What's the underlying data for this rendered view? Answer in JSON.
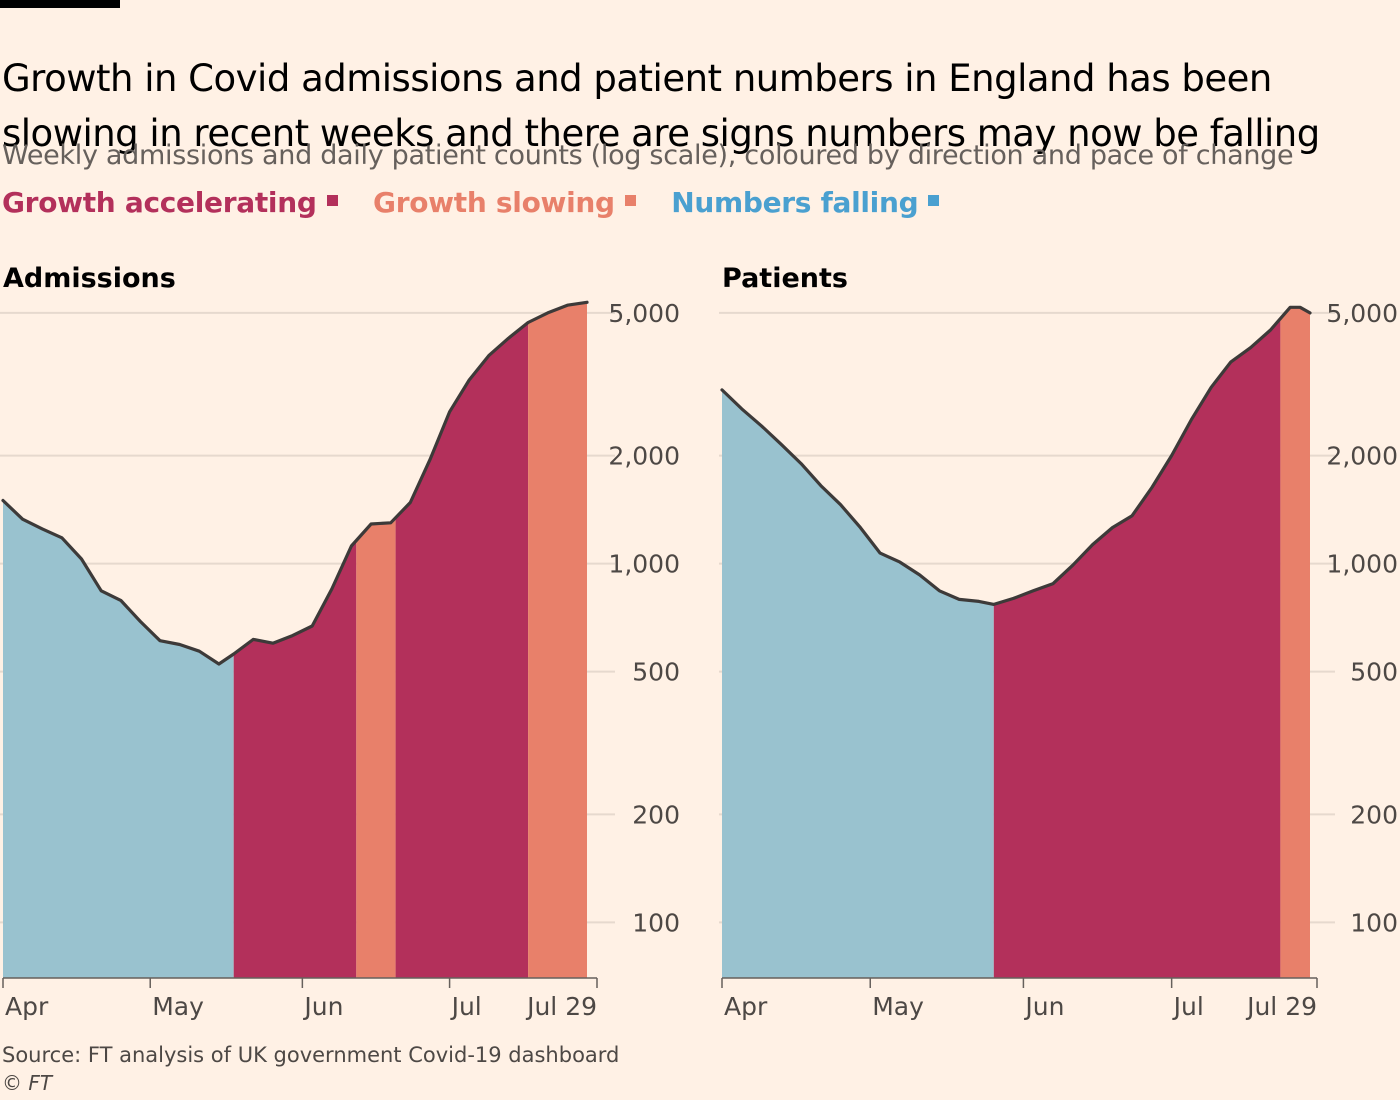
{
  "title": "Growth in Covid admissions and patient numbers in England has been slowing in recent weeks and there are signs numbers may now be falling",
  "subtitle": "Weekly admissions and daily patient counts (log scale), coloured by direction and pace of change",
  "legend": [
    {
      "label": "Growth accelerating",
      "color": "#b3305b"
    },
    {
      "label": "Growth slowing",
      "color": "#e8806a"
    },
    {
      "label": "Numbers falling",
      "color": "#4aa0d0"
    }
  ],
  "colors": {
    "falling": "#99c2cf",
    "accelerating": "#b3305b",
    "slowing": "#e8806a",
    "line": "#3d3a39",
    "grid": "#e6d9ce"
  },
  "source": "Source: FT analysis of UK government Covid-19 dashboard",
  "copyright": "© FT",
  "chart_data": [
    {
      "type": "area",
      "title": "Admissions",
      "scale": "log",
      "ylim": [
        70,
        5500
      ],
      "yticks": [
        100,
        200,
        500,
        1000,
        2000,
        5000
      ],
      "ytick_labels": [
        "100",
        "200",
        "500",
        "1,000",
        "2,000",
        "5,000"
      ],
      "xlim": [
        "2022-04-01",
        "2022-07-29"
      ],
      "xticks": [
        {
          "date": "2022-04-01",
          "label": "Apr"
        },
        {
          "date": "2022-05-01",
          "label": "May"
        },
        {
          "date": "2022-06-01",
          "label": "Jun"
        },
        {
          "date": "2022-07-01",
          "label": "Jul"
        },
        {
          "date": "2022-07-29",
          "label": "Jul 29"
        }
      ],
      "x": [
        "2022-04-01",
        "2022-04-05",
        "2022-04-09",
        "2022-04-13",
        "2022-04-17",
        "2022-04-21",
        "2022-04-25",
        "2022-04-29",
        "2022-05-03",
        "2022-05-07",
        "2022-05-11",
        "2022-05-15",
        "2022-05-18",
        "2022-05-22",
        "2022-05-26",
        "2022-05-30",
        "2022-06-03",
        "2022-06-07",
        "2022-06-11",
        "2022-06-15",
        "2022-06-19",
        "2022-06-23",
        "2022-06-27",
        "2022-07-01",
        "2022-07-05",
        "2022-07-09",
        "2022-07-13",
        "2022-07-17",
        "2022-07-21",
        "2022-07-25",
        "2022-07-29"
      ],
      "values": [
        1500,
        1330,
        1250,
        1180,
        1030,
        840,
        790,
        690,
        610,
        595,
        570,
        525,
        560,
        615,
        600,
        630,
        670,
        850,
        1120,
        1290,
        1300,
        1480,
        1950,
        2650,
        3250,
        3800,
        4250,
        4700,
        5000,
        5250,
        5350
      ],
      "segments": [
        {
          "start": "2022-04-01",
          "end": "2022-05-18",
          "status": "falling"
        },
        {
          "start": "2022-05-18",
          "end": "2022-06-12",
          "status": "accelerating"
        },
        {
          "start": "2022-06-12",
          "end": "2022-06-20",
          "status": "slowing"
        },
        {
          "start": "2022-06-20",
          "end": "2022-07-17",
          "status": "accelerating"
        },
        {
          "start": "2022-07-17",
          "end": "2022-07-29",
          "status": "slowing"
        }
      ]
    },
    {
      "type": "area",
      "title": "Patients",
      "scale": "log",
      "ylim": [
        70,
        5500
      ],
      "yticks": [
        100,
        200,
        500,
        1000,
        2000,
        5000
      ],
      "ytick_labels": [
        "100",
        "200",
        "500",
        "1,000",
        "2,000",
        "5,000"
      ],
      "xlim": [
        "2022-04-01",
        "2022-07-29"
      ],
      "xticks": [
        {
          "date": "2022-04-01",
          "label": "Apr"
        },
        {
          "date": "2022-05-01",
          "label": "May"
        },
        {
          "date": "2022-06-01",
          "label": "Jun"
        },
        {
          "date": "2022-07-01",
          "label": "Jul"
        },
        {
          "date": "2022-07-29",
          "label": "Jul 29"
        }
      ],
      "x": [
        "2022-04-01",
        "2022-04-05",
        "2022-04-09",
        "2022-04-13",
        "2022-04-17",
        "2022-04-21",
        "2022-04-25",
        "2022-04-29",
        "2022-05-03",
        "2022-05-07",
        "2022-05-11",
        "2022-05-15",
        "2022-05-19",
        "2022-05-23",
        "2022-05-26",
        "2022-05-30",
        "2022-06-03",
        "2022-06-07",
        "2022-06-11",
        "2022-06-15",
        "2022-06-19",
        "2022-06-23",
        "2022-06-27",
        "2022-07-01",
        "2022-07-05",
        "2022-07-09",
        "2022-07-13",
        "2022-07-17",
        "2022-07-21",
        "2022-07-25",
        "2022-07-27",
        "2022-07-29"
      ],
      "values": [
        3050,
        2700,
        2420,
        2150,
        1900,
        1650,
        1460,
        1260,
        1070,
        1010,
        930,
        840,
        795,
        785,
        770,
        800,
        840,
        880,
        990,
        1130,
        1260,
        1360,
        1630,
        2000,
        2520,
        3100,
        3650,
        4000,
        4480,
        5180,
        5180,
        5000
      ],
      "segments": [
        {
          "start": "2022-04-01",
          "end": "2022-05-26",
          "status": "falling"
        },
        {
          "start": "2022-05-26",
          "end": "2022-07-23",
          "status": "accelerating"
        },
        {
          "start": "2022-07-23",
          "end": "2022-07-29",
          "status": "slowing"
        }
      ]
    }
  ]
}
